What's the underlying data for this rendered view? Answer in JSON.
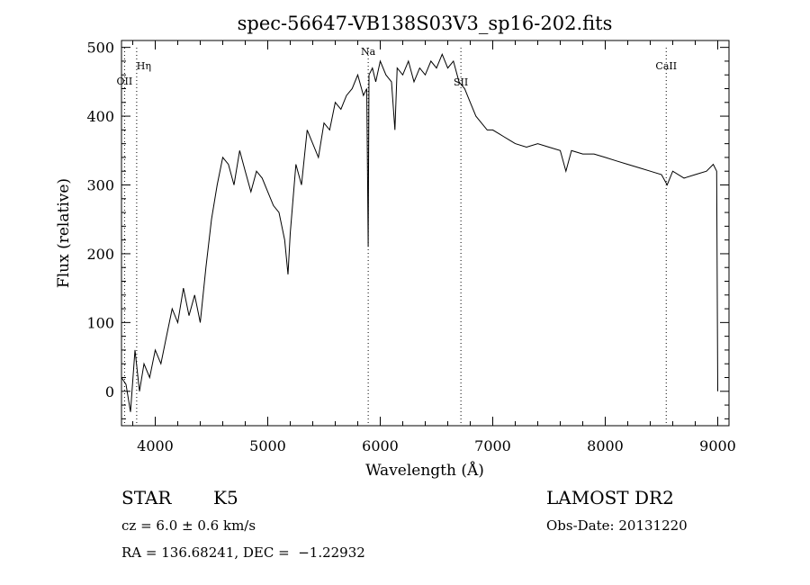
{
  "chart_data": {
    "type": "line",
    "title": "spec-56647-VB138S03V3_sp16-202.fits",
    "xlabel": "Wavelength (Å)",
    "ylabel": "Flux (relative)",
    "xlim": [
      3700,
      9100
    ],
    "ylim": [
      -50,
      510
    ],
    "x_ticks": [
      4000,
      5000,
      6000,
      7000,
      8000,
      9000
    ],
    "y_ticks": [
      0,
      100,
      200,
      300,
      400,
      500
    ],
    "grid": false,
    "series": [
      {
        "color": "#000000",
        "x": [
          3700,
          3740,
          3780,
          3820,
          3860,
          3900,
          3950,
          4000,
          4050,
          4100,
          4150,
          4200,
          4250,
          4300,
          4350,
          4400,
          4450,
          4500,
          4550,
          4600,
          4650,
          4700,
          4750,
          4800,
          4850,
          4900,
          4950,
          5000,
          5050,
          5100,
          5150,
          5180,
          5200,
          5250,
          5300,
          5350,
          5400,
          5450,
          5500,
          5550,
          5600,
          5650,
          5700,
          5750,
          5800,
          5850,
          5880,
          5893,
          5900,
          5930,
          5960,
          6000,
          6050,
          6100,
          6130,
          6150,
          6200,
          6250,
          6300,
          6350,
          6400,
          6450,
          6500,
          6550,
          6600,
          6650,
          6700,
          6750,
          6800,
          6850,
          6900,
          6950,
          7000,
          7050,
          7100,
          7150,
          7200,
          7300,
          7400,
          7500,
          7600,
          7650,
          7700,
          7800,
          7900,
          8000,
          8100,
          8200,
          8300,
          8400,
          8500,
          8550,
          8600,
          8700,
          8800,
          8900,
          8960,
          8990,
          9000
        ],
        "y": [
          20,
          10,
          -30,
          60,
          0,
          40,
          20,
          60,
          40,
          80,
          120,
          100,
          150,
          110,
          140,
          100,
          180,
          250,
          300,
          340,
          330,
          300,
          350,
          320,
          290,
          320,
          310,
          290,
          270,
          260,
          220,
          170,
          230,
          330,
          300,
          380,
          360,
          340,
          390,
          380,
          420,
          410,
          430,
          440,
          460,
          430,
          440,
          210,
          460,
          470,
          450,
          480,
          460,
          450,
          380,
          470,
          460,
          480,
          450,
          470,
          460,
          480,
          470,
          490,
          470,
          480,
          450,
          440,
          420,
          400,
          390,
          380,
          380,
          375,
          370,
          365,
          360,
          355,
          360,
          355,
          350,
          320,
          350,
          345,
          345,
          340,
          335,
          330,
          325,
          320,
          315,
          300,
          320,
          310,
          315,
          320,
          330,
          320,
          0
        ]
      }
    ],
    "lines": [
      {
        "label": "Hη",
        "x": 3835
      },
      {
        "label": "OII",
        "x": 3727
      },
      {
        "label": "Na",
        "x": 5893
      },
      {
        "label": "SII",
        "x": 6717
      },
      {
        "label": "CaII",
        "x": 8542
      }
    ]
  },
  "info": {
    "class_label": "STAR",
    "subclass": "K5",
    "survey": "LAMOST DR2",
    "cz": "cz = 6.0 ± 0.6 km/s",
    "obs_date": "Obs-Date: 20131220",
    "coords": "RA = 136.68241, DEC =  −1.22932"
  }
}
